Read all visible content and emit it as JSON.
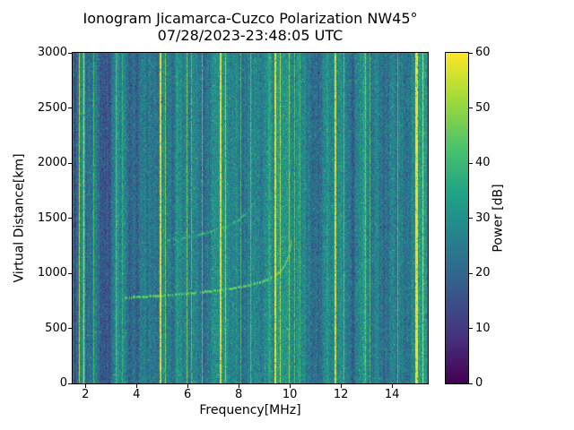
{
  "figure": {
    "background": "#ffffff"
  },
  "chart_data": {
    "type": "heatmap",
    "title": "Ionogram Jicamarca-Cuzco Polarization NW45°",
    "subtitle": "07/28/2023-23:48:05 UTC",
    "xlabel": "Frequency[MHz]",
    "ylabel": "Virtual Distance[km]",
    "colorbar_label": "Power [dB]",
    "xlim": [
      1.5,
      15.4
    ],
    "ylim": [
      0,
      3000
    ],
    "clim": [
      0,
      60
    ],
    "xticks": [
      2,
      4,
      6,
      8,
      10,
      12,
      14
    ],
    "yticks": [
      0,
      500,
      1000,
      1500,
      2000,
      2500,
      3000
    ],
    "colorbar_ticks": [
      0,
      10,
      20,
      30,
      40,
      50,
      60
    ],
    "grid": false,
    "colormap": "viridis",
    "colormap_stops": [
      [
        0.0,
        "#440154"
      ],
      [
        0.14,
        "#46327e"
      ],
      [
        0.29,
        "#365c8d"
      ],
      [
        0.43,
        "#277f8e"
      ],
      [
        0.57,
        "#1fa187"
      ],
      [
        0.71,
        "#4ac16d"
      ],
      [
        0.86,
        "#a0da39"
      ],
      [
        1.0,
        "#fde725"
      ]
    ],
    "noise": {
      "mean_db": 29,
      "std_db": 5
    },
    "dark_bands": [
      {
        "mhz": 1.6,
        "width_mhz": 0.22,
        "delta_db": -13
      },
      {
        "mhz": 2.1,
        "width_mhz": 0.18,
        "delta_db": -8
      },
      {
        "mhz": 2.65,
        "width_mhz": 0.5,
        "delta_db": -8
      },
      {
        "mhz": 3.0,
        "width_mhz": 0.25,
        "delta_db": -5
      },
      {
        "mhz": 3.95,
        "width_mhz": 0.7,
        "delta_db": -5
      },
      {
        "mhz": 4.45,
        "width_mhz": 0.25,
        "delta_db": -6
      },
      {
        "mhz": 5.4,
        "width_mhz": 0.3,
        "delta_db": -4
      },
      {
        "mhz": 6.8,
        "width_mhz": 0.3,
        "delta_db": -4
      },
      {
        "mhz": 8.8,
        "width_mhz": 0.35,
        "delta_db": -6
      },
      {
        "mhz": 10.75,
        "width_mhz": 0.55,
        "delta_db": -7
      },
      {
        "mhz": 11.3,
        "width_mhz": 0.3,
        "delta_db": -5
      },
      {
        "mhz": 12.45,
        "width_mhz": 0.4,
        "delta_db": -7
      },
      {
        "mhz": 13.55,
        "width_mhz": 0.5,
        "delta_db": -7
      },
      {
        "mhz": 14.45,
        "width_mhz": 0.4,
        "delta_db": -6
      }
    ],
    "rfi_lines": [
      {
        "mhz": 1.75,
        "db": 52,
        "width": 1
      },
      {
        "mhz": 1.93,
        "db": 55,
        "width": 1
      },
      {
        "mhz": 2.32,
        "db": 40,
        "width": 1
      },
      {
        "mhz": 3.2,
        "db": 43,
        "width": 1
      },
      {
        "mhz": 3.42,
        "db": 38,
        "width": 1
      },
      {
        "mhz": 4.95,
        "db": 57,
        "width": 2
      },
      {
        "mhz": 5.1,
        "db": 47,
        "width": 1
      },
      {
        "mhz": 5.95,
        "db": 46,
        "width": 1
      },
      {
        "mhz": 6.12,
        "db": 43,
        "width": 1
      },
      {
        "mhz": 6.55,
        "db": 42,
        "width": 1
      },
      {
        "mhz": 7.28,
        "db": 57,
        "width": 2
      },
      {
        "mhz": 7.45,
        "db": 49,
        "width": 1
      },
      {
        "mhz": 8.05,
        "db": 40,
        "width": 1
      },
      {
        "mhz": 8.45,
        "db": 42,
        "width": 1
      },
      {
        "mhz": 9.45,
        "db": 57,
        "width": 2
      },
      {
        "mhz": 9.62,
        "db": 53,
        "width": 1
      },
      {
        "mhz": 9.95,
        "db": 47,
        "width": 1
      },
      {
        "mhz": 10.18,
        "db": 43,
        "width": 1
      },
      {
        "mhz": 10.38,
        "db": 41,
        "width": 1
      },
      {
        "mhz": 11.78,
        "db": 55,
        "width": 2
      },
      {
        "mhz": 12.1,
        "db": 42,
        "width": 1
      },
      {
        "mhz": 12.95,
        "db": 46,
        "width": 1
      },
      {
        "mhz": 13.12,
        "db": 42,
        "width": 1
      },
      {
        "mhz": 14.2,
        "db": 41,
        "width": 1
      },
      {
        "mhz": 14.95,
        "db": 58,
        "width": 3
      },
      {
        "mhz": 15.18,
        "db": 54,
        "width": 1
      }
    ],
    "traces": [
      {
        "name": "first-hop-echo",
        "power_db": 47,
        "dash_keep": 0.75,
        "points": [
          [
            3.55,
            780
          ],
          [
            4.2,
            790
          ],
          [
            5.0,
            800
          ],
          [
            6.0,
            818
          ],
          [
            7.0,
            842
          ],
          [
            7.8,
            868
          ],
          [
            8.4,
            895
          ],
          [
            8.9,
            925
          ],
          [
            9.3,
            965
          ],
          [
            9.6,
            1015
          ],
          [
            9.8,
            1080
          ],
          [
            9.95,
            1170
          ],
          [
            10.05,
            1300
          ]
        ]
      },
      {
        "name": "second-hop-echo",
        "power_db": 41,
        "dash_keep": 0.55,
        "points": [
          [
            5.2,
            1300
          ],
          [
            5.9,
            1325
          ],
          [
            6.5,
            1355
          ],
          [
            7.0,
            1390
          ],
          [
            7.5,
            1430
          ],
          [
            8.0,
            1490
          ],
          [
            8.3,
            1550
          ],
          [
            8.5,
            1610
          ],
          [
            8.62,
            1665
          ]
        ]
      }
    ]
  }
}
